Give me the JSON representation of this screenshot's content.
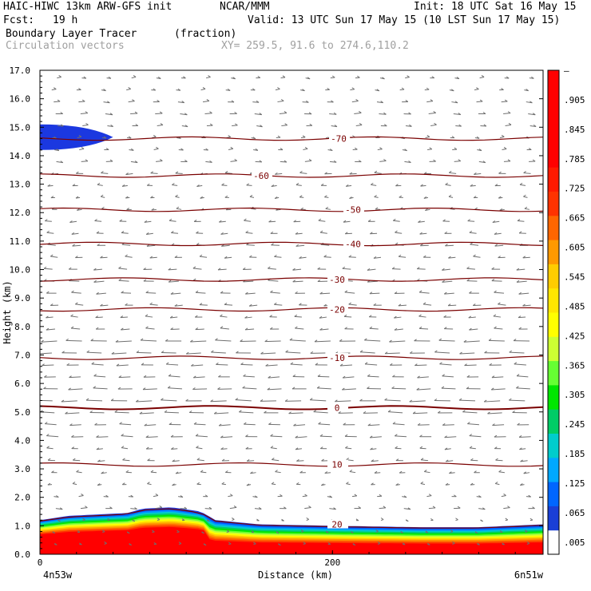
{
  "header": {
    "model": "HAIC-HIWC 13km ARW-GFS init",
    "org": "NCAR/MMM",
    "init": "Init: 18 UTC Sat 16 May 15",
    "fcst_label": "Fcst:",
    "fcst_value": "19 h",
    "valid": "Valid: 13 UTC Sun 17 May 15 (10 LST Sun 17 May 15)",
    "field": "Boundary Layer Tracer",
    "units": "(fraction)",
    "vectors": "Circulation vectors",
    "xy": "XY= 259.5, 91.6 to 274.6,110.2"
  },
  "colors": {
    "contour": "#7a0000",
    "vector": "#6f6f6f",
    "tracer_ramp": [
      "#ff0000",
      "#ff3300",
      "#ff6600",
      "#ff9900",
      "#ffcc00",
      "#ffff00",
      "#ccff33",
      "#66ff33",
      "#00e600",
      "#00cc66",
      "#00cccc",
      "#0099ff",
      "#0055ff",
      "#1b38e0"
    ]
  },
  "chart_data": {
    "type": "heatmap",
    "xlabel": "Distance (km)",
    "ylabel": "Height (km)",
    "xlim": [
      0,
      344
    ],
    "ylim": [
      0,
      17
    ],
    "x_ticks": [
      0,
      200
    ],
    "x_tick_labels": [
      "0",
      "200"
    ],
    "x_end_labels": [
      "4n53w",
      "6n51w"
    ],
    "y_ticks": [
      0.0,
      1.0,
      2.0,
      3.0,
      4.0,
      5.0,
      6.0,
      7.0,
      8.0,
      9.0,
      10.0,
      11.0,
      12.0,
      13.0,
      14.0,
      15.0,
      16.0,
      17.0
    ],
    "y_tick_labels": [
      "0.0",
      "1.0",
      "2.0",
      "3.0",
      "4.0",
      "5.0",
      "6.0",
      "7.0",
      "8.0",
      "9.0",
      "10.0",
      "11.0",
      "12.0",
      "13.0",
      "14.0",
      "15.0",
      "16.0",
      "17.0"
    ],
    "colorbar": {
      "labels": [
        ".005",
        ".065",
        ".125",
        ".185",
        ".245",
        ".305",
        ".365",
        ".425",
        ".485",
        ".545",
        ".605",
        ".665",
        ".725",
        ".785",
        ".845",
        ".905",
        "–"
      ],
      "colors": [
        "#ffffff",
        "#1a3fd6",
        "#0066ff",
        "#00a8ff",
        "#00cccc",
        "#00cc66",
        "#00e600",
        "#66ff33",
        "#ccff33",
        "#ffff00",
        "#ffe600",
        "#ffcc00",
        "#ff9900",
        "#ff6600",
        "#ff3300",
        "#ff1a00",
        "#ff0000",
        "#ff0000",
        "#ff0000",
        "#ff0000"
      ]
    },
    "temperature_contours": {
      "label_values": [
        "20",
        "10",
        "0",
        "-10",
        "-20",
        "-30",
        "-40",
        "-50",
        "-60",
        "-70"
      ],
      "heights_km": [
        1.05,
        3.15,
        5.15,
        6.9,
        8.6,
        9.65,
        10.9,
        12.1,
        13.3,
        14.6
      ]
    },
    "tracer_top_km": [
      [
        0,
        1.2
      ],
      [
        20,
        1.35
      ],
      [
        60,
        1.45
      ],
      [
        70,
        1.6
      ],
      [
        90,
        1.65
      ],
      [
        110,
        1.5
      ],
      [
        120,
        1.2
      ],
      [
        150,
        1.05
      ],
      [
        200,
        1.0
      ],
      [
        260,
        0.95
      ],
      [
        300,
        0.95
      ],
      [
        344,
        1.05
      ]
    ],
    "upper_blob": {
      "x_range_km": [
        0,
        50
      ],
      "z_range_km": [
        14.2,
        15.1
      ]
    }
  }
}
